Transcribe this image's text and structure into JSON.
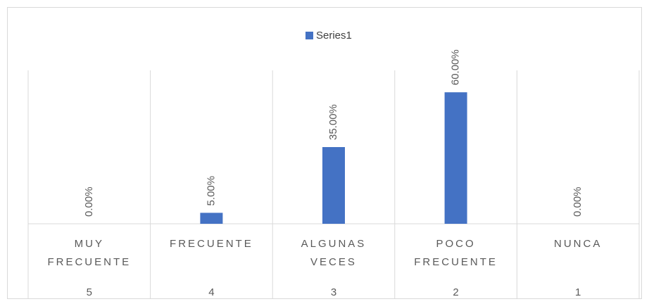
{
  "chart_data": {
    "type": "bar",
    "legend": "Series1",
    "categories": [
      "MUY FRECUENTE",
      "FRECUENTE",
      "ALGUNAS VECES",
      "POCO FRECUENTE",
      "NUNCA"
    ],
    "subcategories": [
      "5",
      "4",
      "3",
      "2",
      "1"
    ],
    "values": [
      0,
      5,
      35,
      60,
      0
    ],
    "value_labels": [
      "0.00%",
      "5.00%",
      "35.00%",
      "60.00%",
      "0.00%"
    ],
    "color": "#4472c4",
    "ylim": [
      0,
      70
    ]
  }
}
